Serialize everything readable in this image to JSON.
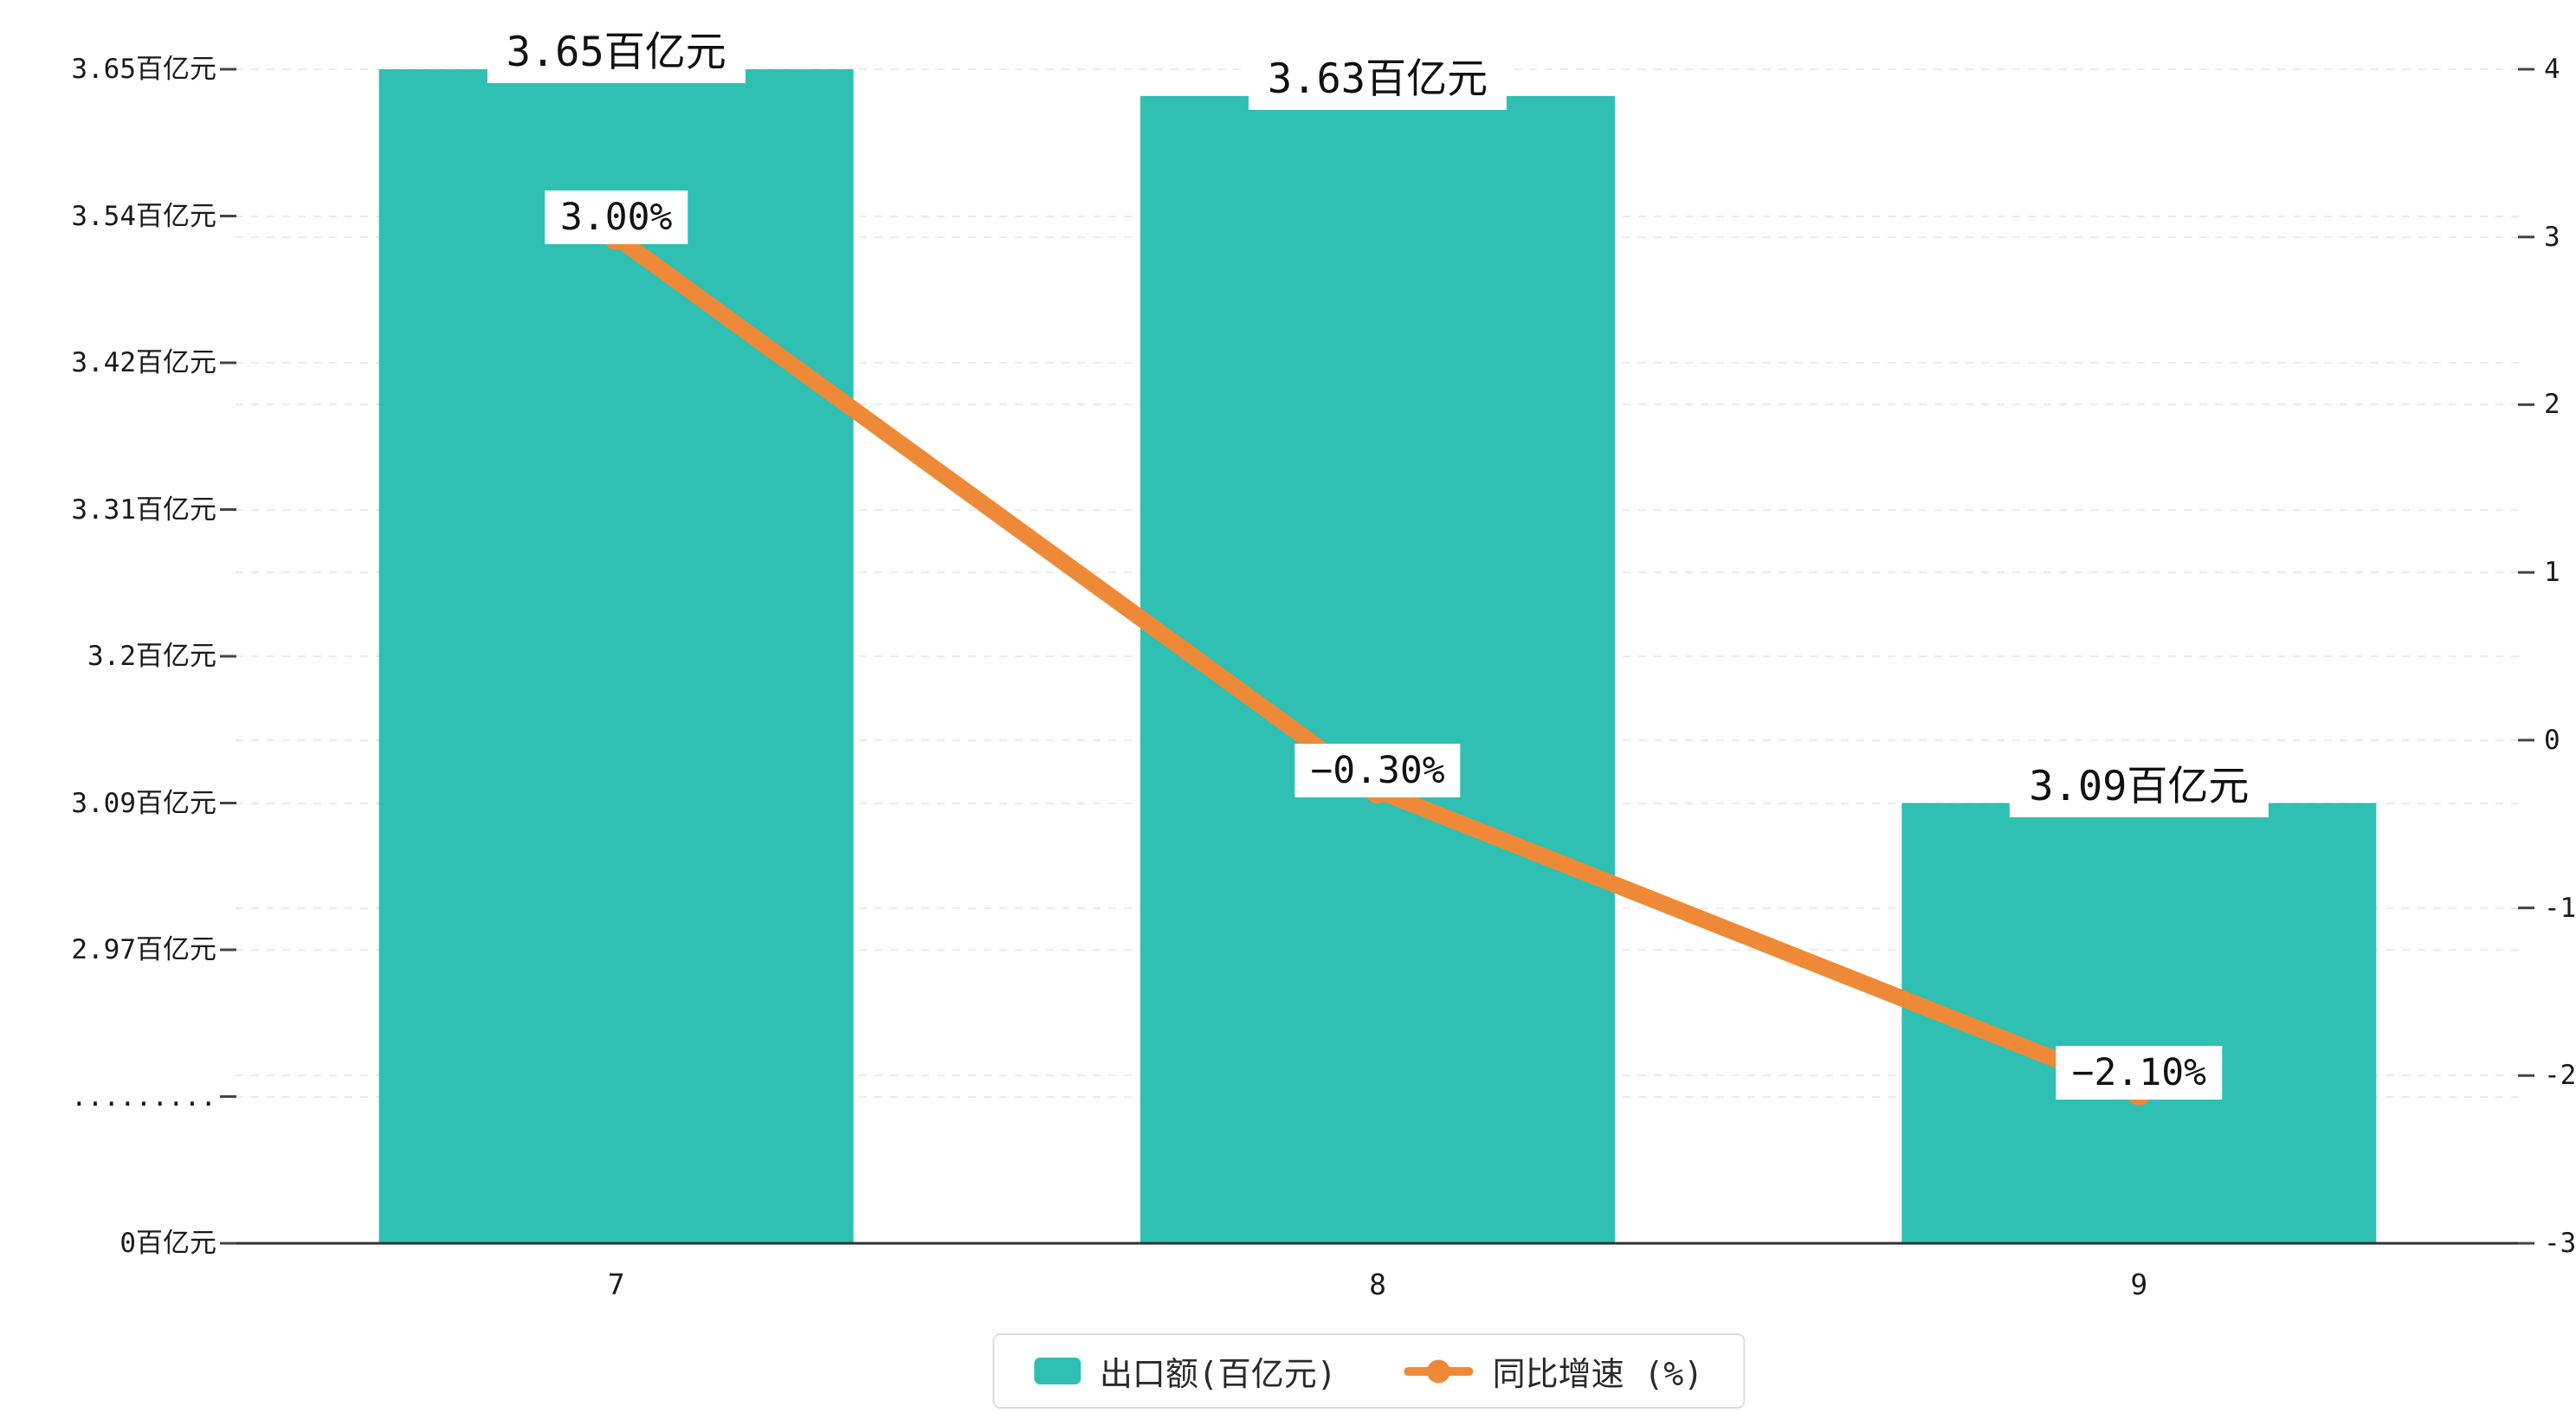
{
  "chart_data": {
    "type": "bar",
    "title": "",
    "categories": [
      "7",
      "8",
      "9"
    ],
    "series": [
      {
        "name": "出口额(百亿元)",
        "type": "bar",
        "axis": "left",
        "values": [
          3.65,
          3.63,
          3.09
        ],
        "labels": [
          "3.65百亿元",
          "3.63百亿元",
          "3.09百亿元"
        ],
        "color": "#2fbfb3"
      },
      {
        "name": "同比增速 (%)",
        "type": "line",
        "axis": "right",
        "values": [
          3.0,
          -0.3,
          -2.1
        ],
        "labels": [
          "3.00%",
          "−0.30%",
          "−2.10%"
        ],
        "color": "#ee8a37"
      }
    ],
    "left_axis_ticks": [
      {
        "label": "3.65百亿元",
        "value": 3.65
      },
      {
        "label": "3.54百亿元",
        "value": 3.54
      },
      {
        "label": "3.42百亿元",
        "value": 3.42
      },
      {
        "label": "3.31百亿元",
        "value": 3.31
      },
      {
        "label": "3.2百亿元",
        "value": 3.2
      },
      {
        "label": "3.09百亿元",
        "value": 3.09
      },
      {
        "label": "2.97百亿元",
        "value": 2.97
      },
      {
        "label": ".........",
        "value": null
      },
      {
        "label": "0百亿元",
        "value": 0
      }
    ],
    "right_axis_ticks": [
      "4",
      "3",
      "2",
      "1",
      "0",
      "-1",
      "-2",
      "-3"
    ],
    "right_axis_range": [
      -3,
      4
    ],
    "grid": true,
    "legend_position": "bottom"
  },
  "legend": {
    "items": [
      {
        "label": "出口额(百亿元)",
        "type": "bar",
        "color": "#2fbfb3"
      },
      {
        "label": "同比增速 (%)",
        "type": "line",
        "color": "#ee8a37"
      }
    ]
  },
  "colors": {
    "bar": "#2fbfb3",
    "line": "#ee8a37",
    "axis": "#333333",
    "tick": "#444444",
    "grid": "#ebebeb",
    "text": "#1a1a1a",
    "background": "#ffffff"
  }
}
